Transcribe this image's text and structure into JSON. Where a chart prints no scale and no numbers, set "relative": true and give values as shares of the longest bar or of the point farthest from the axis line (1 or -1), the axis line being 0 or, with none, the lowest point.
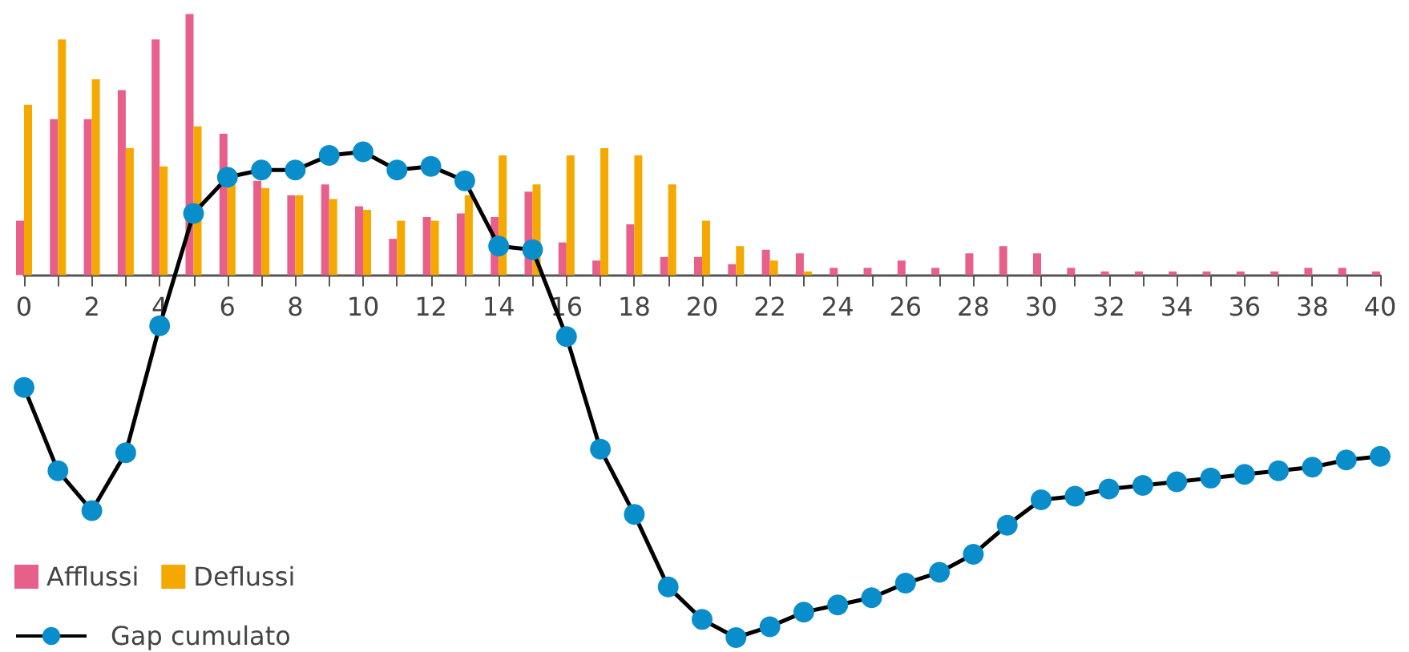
{
  "chart_data": {
    "type": "bar",
    "relative": true,
    "x": [
      0,
      1,
      2,
      3,
      4,
      5,
      6,
      7,
      8,
      9,
      10,
      11,
      12,
      13,
      14,
      15,
      16,
      17,
      18,
      19,
      20,
      21,
      22,
      23,
      24,
      25,
      26,
      27,
      28,
      29,
      30,
      31,
      32,
      33,
      34,
      35,
      36,
      37,
      38,
      39,
      40
    ],
    "xlim": [
      0,
      40
    ],
    "xticks": [
      0,
      {
        "value": 1,
        "label": null
      },
      2,
      {
        "value": 3,
        "label": null
      },
      4,
      {
        "value": 5,
        "label": null
      },
      6,
      {
        "value": 7,
        "label": null
      },
      8,
      {
        "value": 9,
        "label": null
      },
      10,
      {
        "value": 11,
        "label": null
      },
      12,
      {
        "value": 13,
        "label": null
      },
      14,
      {
        "value": 15,
        "label": null
      },
      16,
      {
        "value": 17,
        "label": null
      },
      18,
      {
        "value": 19,
        "label": null
      },
      20,
      {
        "value": 21,
        "label": null
      },
      22,
      {
        "value": 23,
        "label": null
      },
      24,
      {
        "value": 25,
        "label": null
      },
      26,
      {
        "value": 27,
        "label": null
      },
      28,
      {
        "value": 29,
        "label": null
      },
      30,
      {
        "value": 31,
        "label": null
      },
      32,
      {
        "value": 33,
        "label": null
      },
      34,
      {
        "value": 35,
        "label": null
      },
      36,
      {
        "value": 37,
        "label": null
      },
      38,
      {
        "value": 39,
        "label": null
      },
      40
    ],
    "series": [
      {
        "name": "Afflussi",
        "color": "#e8608a",
        "values": [
          0.15,
          0.43,
          0.43,
          0.51,
          0.65,
          0.72,
          0.39,
          0.26,
          0.22,
          0.25,
          0.19,
          0.1,
          0.16,
          0.17,
          0.16,
          0.23,
          0.09,
          0.04,
          0.14,
          0.05,
          0.05,
          0.03,
          0.07,
          0.06,
          0.02,
          0.02,
          0.04,
          0.02,
          0.06,
          0.08,
          0.06,
          0.02,
          0.01,
          0.01,
          0.01,
          0.01,
          0.01,
          0.01,
          0.02,
          0.02,
          0.01
        ]
      },
      {
        "name": "Deflussi",
        "color": "#f5a800",
        "values": [
          0.47,
          0.65,
          0.54,
          0.35,
          0.3,
          0.41,
          0.25,
          0.24,
          0.22,
          0.21,
          0.18,
          0.15,
          0.15,
          0.22,
          0.33,
          0.25,
          0.33,
          0.35,
          0.33,
          0.25,
          0.15,
          0.08,
          0.04,
          0.01,
          0,
          0,
          0,
          0,
          0,
          0,
          0,
          0,
          0,
          0,
          0,
          0,
          0,
          0,
          0,
          0,
          0
        ]
      },
      {
        "name": "Gap cumulato",
        "type": "line",
        "color": "#0a8ecb",
        "values": [
          -0.31,
          -0.54,
          -0.65,
          -0.49,
          -0.14,
          0.17,
          0.27,
          0.29,
          0.29,
          0.33,
          0.34,
          0.29,
          0.3,
          0.26,
          0.08,
          0.07,
          -0.17,
          -0.48,
          -0.66,
          -0.86,
          -0.95,
          -1,
          -0.97,
          -0.93,
          -0.91,
          -0.89,
          -0.85,
          -0.82,
          -0.77,
          -0.69,
          -0.62,
          -0.61,
          -0.59,
          -0.58,
          -0.57,
          -0.56,
          -0.55,
          -0.54,
          -0.53,
          -0.51,
          -0.5
        ]
      }
    ],
    "legend": "bottom left",
    "marker": "circle"
  }
}
